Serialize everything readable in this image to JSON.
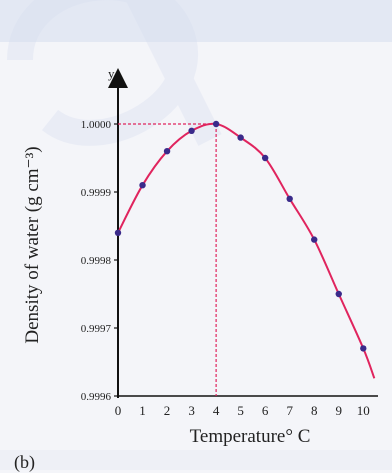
{
  "chart_data": {
    "type": "line",
    "x": [
      0,
      1,
      2,
      3,
      4,
      5,
      6,
      7,
      8,
      9,
      10
    ],
    "y": [
      0.99984,
      0.99991,
      0.99996,
      0.99999,
      1.0,
      0.99998,
      0.99995,
      0.99989,
      0.99983,
      0.99975,
      0.99967
    ],
    "xlim": [
      0,
      10.6
    ],
    "ylim": [
      0.9996,
      1.00005
    ],
    "xlabel": "Temperature° C",
    "ylabel": "Density of water (g cm⁻³)",
    "x_axis_letter": "y",
    "x_ticks": [
      "0",
      "1",
      "2",
      "3",
      "4",
      "5",
      "6",
      "7",
      "8",
      "9",
      "10"
    ],
    "y_ticks": [
      {
        "value": 0.9996,
        "label": "0.9996"
      },
      {
        "value": 0.9997,
        "label": "0.9997"
      },
      {
        "value": 0.9998,
        "label": "0.9998"
      },
      {
        "value": 0.9999,
        "label": "0.9999"
      },
      {
        "value": 1.0,
        "label": "1.0000"
      }
    ],
    "max_point": {
      "x": 4,
      "y": 1.0
    },
    "grid": false,
    "curve_color": "#e0245e",
    "point_color": "#3a2a8a",
    "guide_color": "#e0245e"
  },
  "caption": "(b)"
}
